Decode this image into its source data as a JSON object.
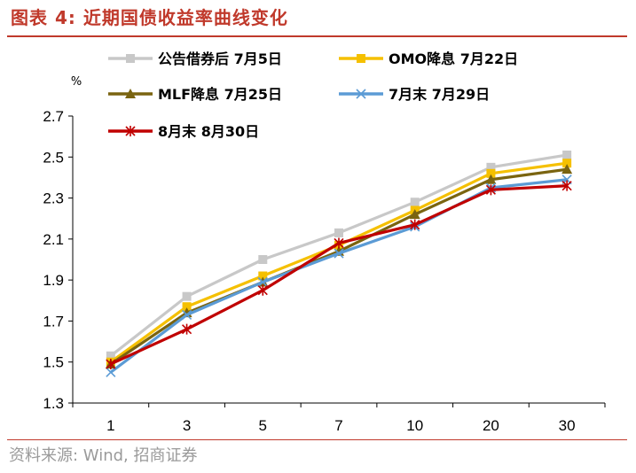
{
  "figure_title": "图表 4: 近期国债收益率曲线变化",
  "source_note": "资料来源: Wind, 招商证券",
  "chart_data": {
    "type": "line",
    "title": "",
    "xlabel": "",
    "ylabel": "%",
    "categories": [
      "1",
      "3",
      "5",
      "7",
      "10",
      "20",
      "30"
    ],
    "ylim": [
      1.3,
      2.7
    ],
    "yticks": [
      "1.3",
      "1.5",
      "1.7",
      "1.9",
      "2.1",
      "2.3",
      "2.5",
      "2.7"
    ],
    "grid": false,
    "legend_position": "top",
    "series": [
      {
        "name": "公告借券后 7月5日",
        "color": "#c8c8c8",
        "marker": "square",
        "values": [
          1.53,
          1.82,
          2.0,
          2.13,
          2.28,
          2.45,
          2.51
        ]
      },
      {
        "name": "OMO降息 7月22日",
        "color": "#f5c000",
        "marker": "square",
        "values": [
          1.5,
          1.77,
          1.92,
          2.07,
          2.24,
          2.42,
          2.47
        ]
      },
      {
        "name": "MLF降息 7月25日",
        "color": "#7a6410",
        "marker": "triangle",
        "values": [
          1.49,
          1.74,
          1.89,
          2.04,
          2.22,
          2.39,
          2.44
        ]
      },
      {
        "name": "7月末 7月29日",
        "color": "#5b9bd5",
        "marker": "x",
        "values": [
          1.45,
          1.73,
          1.89,
          2.03,
          2.16,
          2.35,
          2.39
        ]
      },
      {
        "name": "8月末 8月30日",
        "color": "#c00000",
        "marker": "star",
        "values": [
          1.49,
          1.66,
          1.85,
          2.08,
          2.17,
          2.34,
          2.36
        ]
      }
    ]
  }
}
